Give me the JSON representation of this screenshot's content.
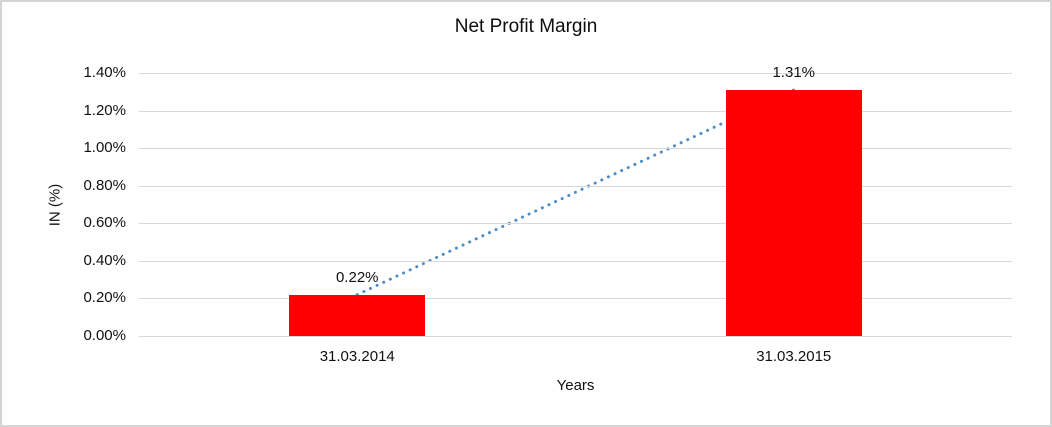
{
  "window": {
    "background": "#FFFFFF",
    "frame_border_color": "#D4D4D4"
  },
  "chart_data": {
    "type": "bar",
    "title": "Net Profit Margin",
    "categories": [
      "31.03.2014",
      "31.03.2015"
    ],
    "series": [
      {
        "name": "Net Profit Margin",
        "values": [
          0.22,
          1.31
        ]
      }
    ],
    "data_labels": [
      "0.22%",
      "1.31%"
    ],
    "xlabel": "Years",
    "ylabel": "IN (%)",
    "ylim": [
      0,
      1.4
    ],
    "y_ticks": [
      "0.00%",
      "0.20%",
      "0.40%",
      "0.60%",
      "0.80%",
      "1.00%",
      "1.20%",
      "1.40%"
    ],
    "grid": true,
    "legend_position": "none",
    "bar_color": "#FF0000",
    "gridline_color": "#D9D9D9",
    "trendline": {
      "type": "linear",
      "style": "dotted",
      "color": "#4D8CC9",
      "connects": "bar tops"
    }
  }
}
